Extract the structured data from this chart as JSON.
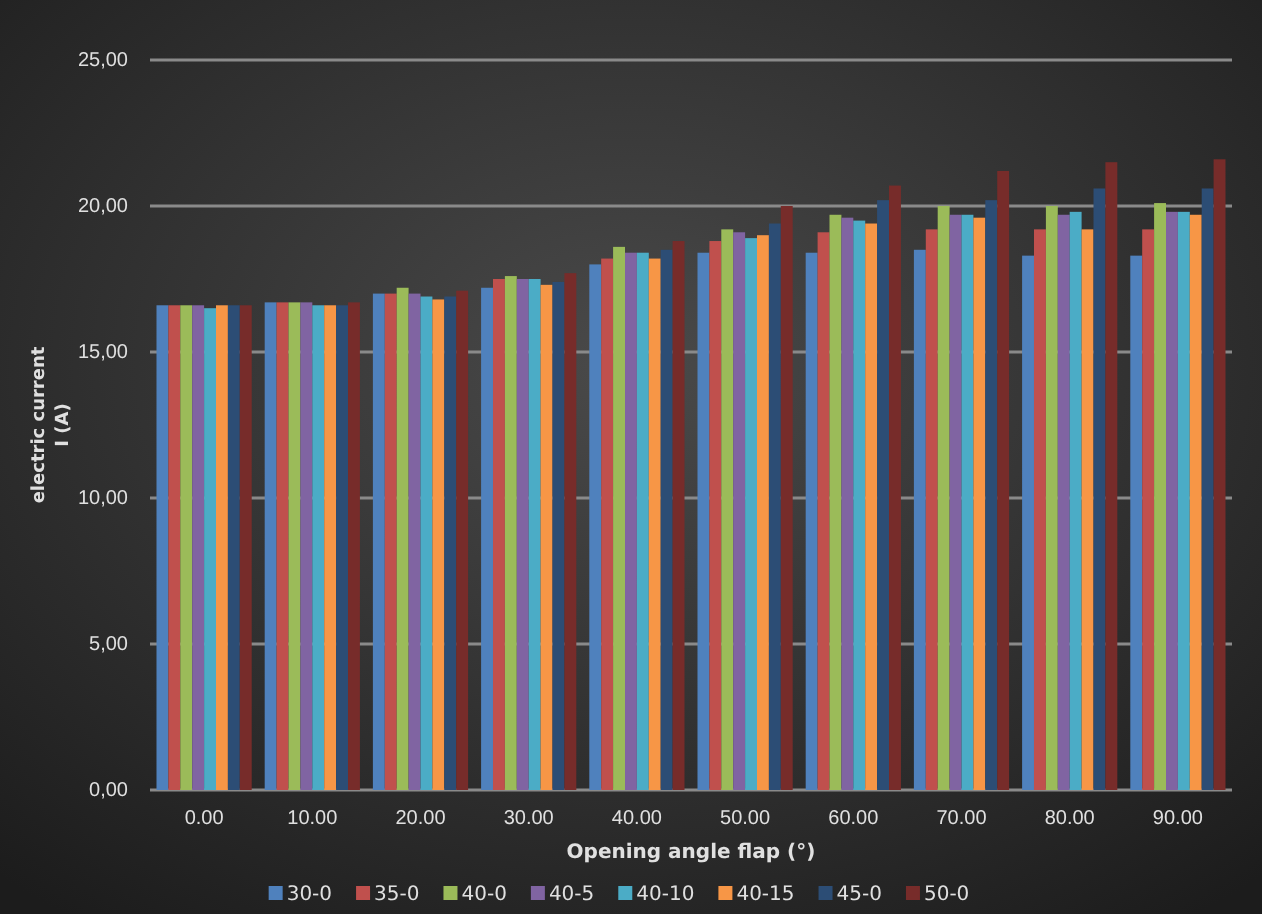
{
  "chart_data": {
    "type": "bar",
    "xlabel": "Opening  angle flap (°)",
    "ylabel": "electric current\nI (A)",
    "categories": [
      "0.00",
      "10.00",
      "20.00",
      "30.00",
      "40.00",
      "50.00",
      "60.00",
      "70.00",
      "80.00",
      "90.00"
    ],
    "series": [
      {
        "name": "30-0",
        "color": "#4f81bd",
        "values": [
          16.6,
          16.7,
          17.0,
          17.2,
          18.0,
          18.4,
          18.4,
          18.5,
          18.3,
          18.3
        ]
      },
      {
        "name": "35-0",
        "color": "#c0504d",
        "values": [
          16.6,
          16.7,
          17.0,
          17.5,
          18.2,
          18.8,
          19.1,
          19.2,
          19.2,
          19.2
        ]
      },
      {
        "name": "40-0",
        "color": "#9bbb59",
        "values": [
          16.6,
          16.7,
          17.2,
          17.6,
          18.6,
          19.2,
          19.7,
          20.0,
          20.0,
          20.1
        ]
      },
      {
        "name": "40-5",
        "color": "#8064a2",
        "values": [
          16.6,
          16.7,
          17.0,
          17.5,
          18.4,
          19.1,
          19.6,
          19.7,
          19.7,
          19.8
        ]
      },
      {
        "name": "40-10",
        "color": "#4bacc6",
        "values": [
          16.5,
          16.6,
          16.9,
          17.5,
          18.4,
          18.9,
          19.5,
          19.7,
          19.8,
          19.8
        ]
      },
      {
        "name": "40-15",
        "color": "#f79646",
        "values": [
          16.6,
          16.6,
          16.8,
          17.3,
          18.2,
          19.0,
          19.4,
          19.6,
          19.2,
          19.7
        ]
      },
      {
        "name": "45-0",
        "color": "#2c4d75",
        "values": [
          16.6,
          16.6,
          16.9,
          17.4,
          18.5,
          19.4,
          20.2,
          20.2,
          20.6,
          20.6
        ]
      },
      {
        "name": "50-0",
        "color": "#772c2a",
        "values": [
          16.6,
          16.7,
          17.1,
          17.7,
          18.8,
          20.0,
          20.7,
          21.2,
          21.5,
          21.6
        ]
      }
    ],
    "ylim": [
      0,
      25
    ],
    "yticks": [
      {
        "value": 0,
        "label": "0,00"
      },
      {
        "value": 5,
        "label": "5,00"
      },
      {
        "value": 10,
        "label": "10,00"
      },
      {
        "value": 15,
        "label": "15,00"
      },
      {
        "value": 20,
        "label": "20,00"
      },
      {
        "value": 25,
        "label": "25,00"
      }
    ],
    "grid": "y",
    "legend": "bottom"
  }
}
